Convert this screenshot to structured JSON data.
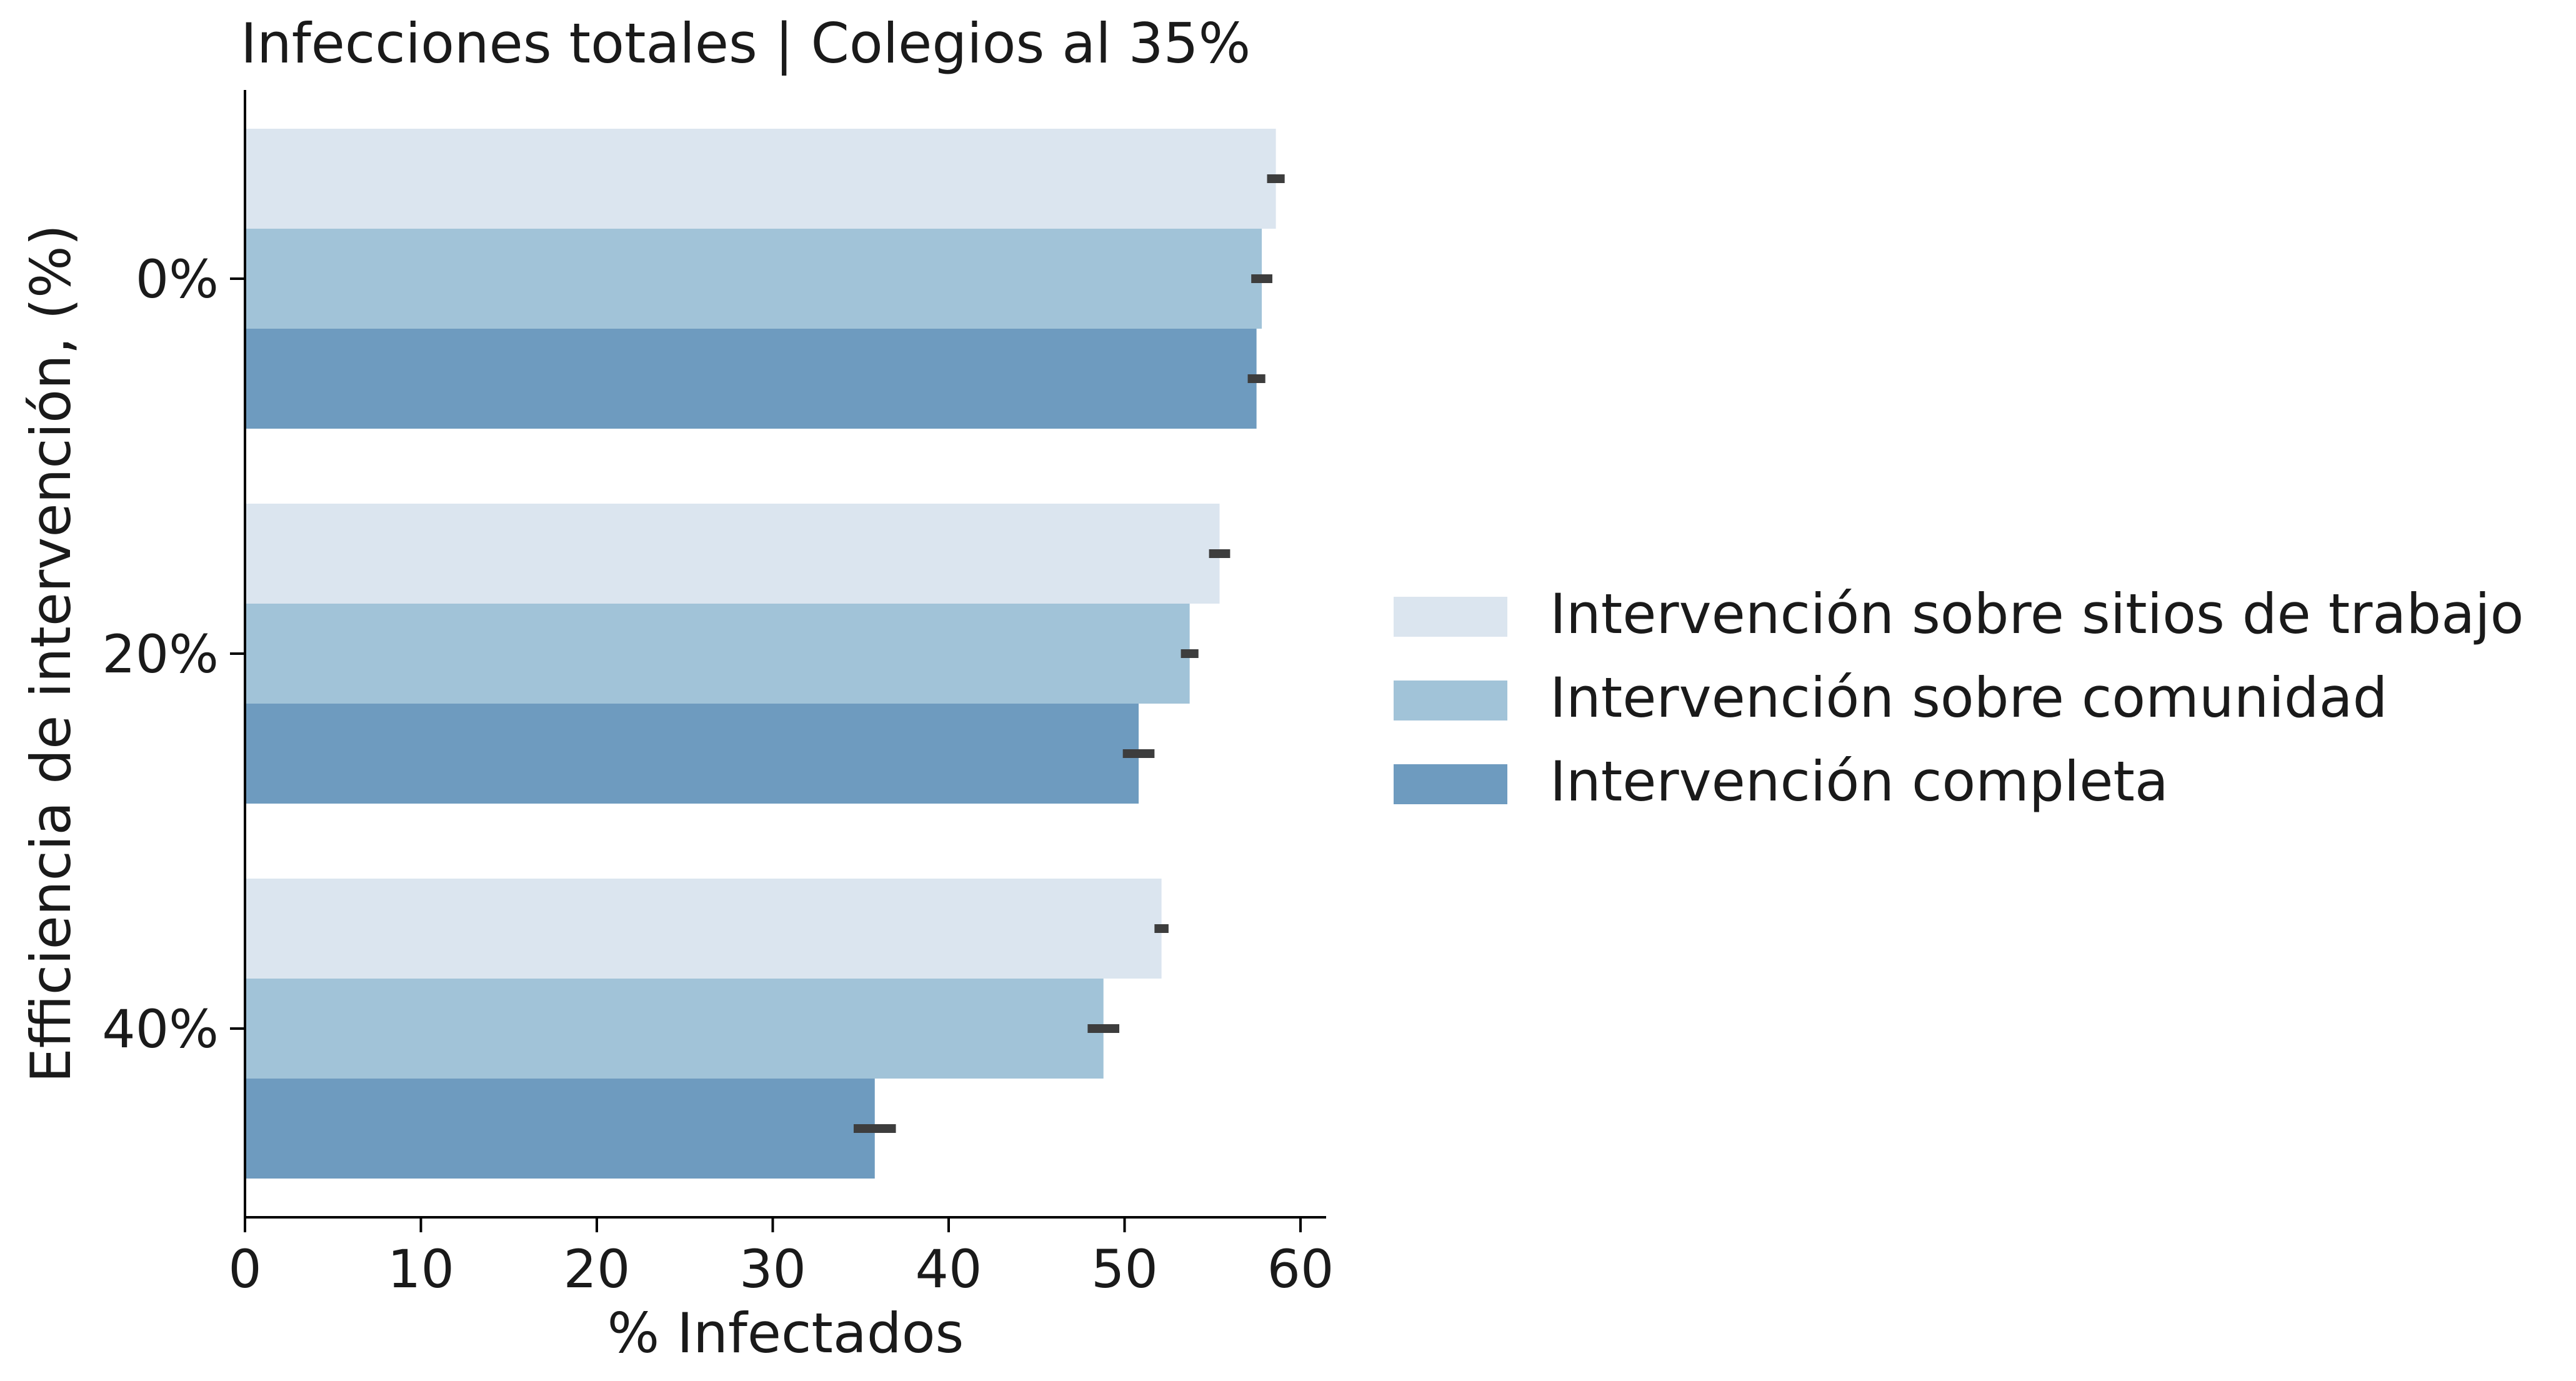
{
  "chart_data": {
    "type": "bar",
    "orientation": "horizontal",
    "title": "Infecciones totales | Colegios al 35%",
    "xlabel": "% Infectados",
    "ylabel": "Efficiencia de intervención, (%)",
    "categories": [
      "0%",
      "20%",
      "40%"
    ],
    "xlim": [
      0,
      62
    ],
    "xticks": [
      0,
      10,
      20,
      30,
      40,
      50,
      60
    ],
    "grid": false,
    "legend_position": "right",
    "series": [
      {
        "name": "Intervención sobre sitios de trabajo",
        "color": "#dbe5ef",
        "values": [
          58.6,
          55.4,
          52.1
        ],
        "error": [
          0.5,
          0.6,
          0.4
        ]
      },
      {
        "name": "Intervención sobre comunidad",
        "color": "#a1c3d8",
        "values": [
          57.8,
          53.7,
          48.8
        ],
        "error": [
          0.6,
          0.5,
          0.9
        ]
      },
      {
        "name": "Intervención completa",
        "color": "#6e9bbf",
        "values": [
          57.5,
          50.8,
          35.8
        ],
        "error": [
          0.5,
          0.9,
          1.2
        ]
      }
    ]
  }
}
